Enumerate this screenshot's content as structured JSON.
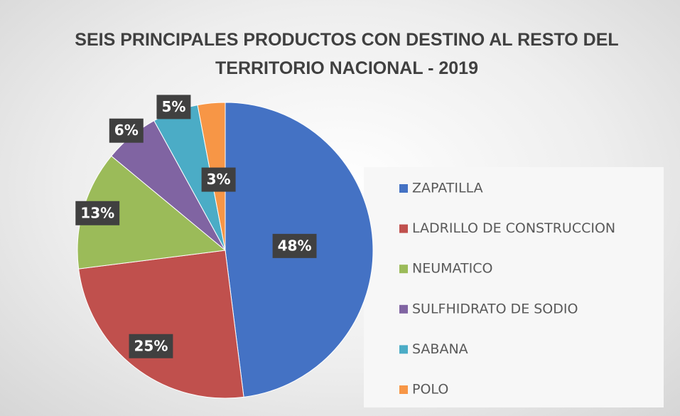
{
  "chart_data": {
    "type": "pie",
    "title": "SEIS PRINCIPALES PRODUCTOS CON DESTINO AL RESTO DEL TERRITORIO NACIONAL - 2019",
    "categories": [
      "ZAPATILLA",
      "LADRILLO DE CONSTRUCCION",
      "NEUMATICO",
      "SULFHIDRATO DE SODIO",
      "SABANA",
      "POLO"
    ],
    "values": [
      48,
      25,
      13,
      6,
      5,
      3
    ],
    "value_labels": [
      "48%",
      "25%",
      "13%",
      "6%",
      "5%",
      "3%"
    ],
    "colors": [
      "#4472c4",
      "#c0504d",
      "#9bbb59",
      "#8064a2",
      "#4bacc6",
      "#f79646"
    ],
    "legend": "right"
  }
}
